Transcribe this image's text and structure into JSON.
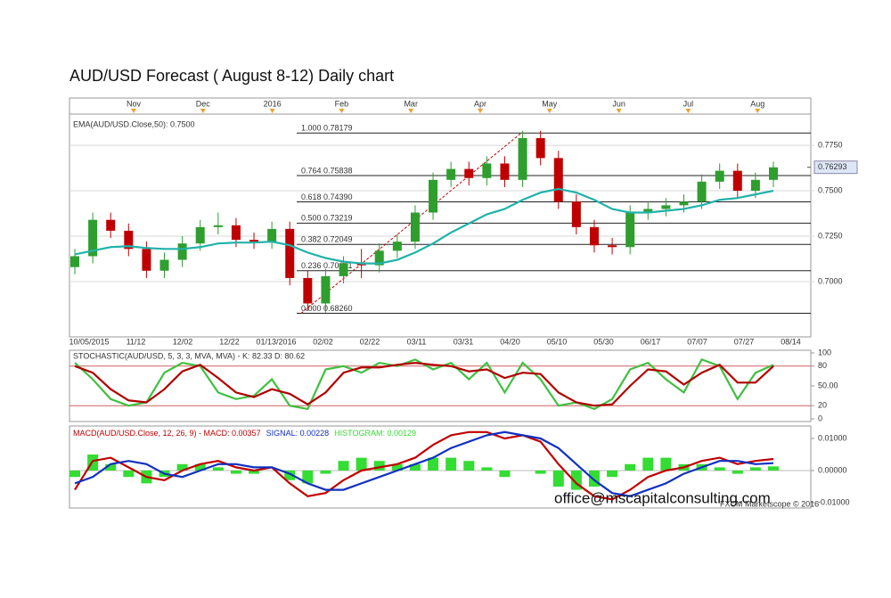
{
  "chart_data": [
    {
      "type": "candlestick",
      "title": "AUD/USD Forecast ( August 8-12) Daily chart",
      "open": [
        0.708,
        0.714,
        0.734,
        0.728,
        0.718,
        0.706,
        0.712,
        0.721,
        0.73,
        0.731,
        0.723,
        0.722,
        0.729,
        0.702,
        0.688,
        0.703,
        0.71,
        0.709,
        0.717,
        0.722,
        0.738,
        0.756,
        0.762,
        0.757,
        0.765,
        0.756,
        0.779,
        0.768,
        0.744,
        0.73,
        0.72,
        0.719,
        0.738,
        0.74,
        0.742,
        0.744,
        0.755,
        0.761,
        0.75,
        0.756
      ],
      "high": [
        0.718,
        0.738,
        0.738,
        0.732,
        0.722,
        0.716,
        0.725,
        0.734,
        0.738,
        0.735,
        0.727,
        0.733,
        0.733,
        0.706,
        0.707,
        0.714,
        0.718,
        0.721,
        0.726,
        0.742,
        0.76,
        0.766,
        0.766,
        0.769,
        0.769,
        0.783,
        0.783,
        0.772,
        0.748,
        0.734,
        0.724,
        0.742,
        0.744,
        0.746,
        0.748,
        0.759,
        0.765,
        0.765,
        0.76,
        0.766
      ],
      "low": [
        0.704,
        0.71,
        0.724,
        0.714,
        0.702,
        0.702,
        0.708,
        0.717,
        0.726,
        0.719,
        0.718,
        0.718,
        0.698,
        0.684,
        0.683,
        0.699,
        0.702,
        0.705,
        0.713,
        0.718,
        0.734,
        0.752,
        0.753,
        0.753,
        0.752,
        0.752,
        0.764,
        0.74,
        0.726,
        0.716,
        0.715,
        0.715,
        0.734,
        0.736,
        0.738,
        0.74,
        0.751,
        0.746,
        0.746,
        0.752
      ],
      "close": [
        0.714,
        0.734,
        0.728,
        0.718,
        0.706,
        0.712,
        0.721,
        0.73,
        0.731,
        0.723,
        0.722,
        0.729,
        0.702,
        0.688,
        0.703,
        0.71,
        0.709,
        0.717,
        0.722,
        0.738,
        0.756,
        0.762,
        0.757,
        0.765,
        0.756,
        0.779,
        0.768,
        0.744,
        0.73,
        0.72,
        0.719,
        0.738,
        0.74,
        0.742,
        0.744,
        0.755,
        0.761,
        0.75,
        0.756,
        0.7629
      ],
      "up_color": "#2e9e2e",
      "down_color": "#c00000",
      "ema": {
        "name": "EMA(AUD/USD.Close,50): 0.7500",
        "color": "#20b2aa",
        "values": [
          0.715,
          0.717,
          0.719,
          0.7195,
          0.7185,
          0.718,
          0.718,
          0.719,
          0.721,
          0.7215,
          0.7215,
          0.722,
          0.72,
          0.716,
          0.713,
          0.711,
          0.71,
          0.71,
          0.712,
          0.716,
          0.721,
          0.727,
          0.732,
          0.737,
          0.74,
          0.745,
          0.749,
          0.751,
          0.749,
          0.745,
          0.74,
          0.738,
          0.738,
          0.739,
          0.74,
          0.742,
          0.745,
          0.746,
          0.748,
          0.75
        ]
      },
      "fibonacci": [
        {
          "value": 0.78179,
          "label": "1.000 0.78179"
        },
        {
          "value": 0.75838,
          "label": "0.764 0.75838"
        },
        {
          "value": 0.7439,
          "label": "0.618 0.74390"
        },
        {
          "value": 0.73219,
          "label": "0.500 0.73219"
        },
        {
          "value": 0.72049,
          "label": "0.382 0.72049"
        },
        {
          "value": 0.70601,
          "label": "0.236 0.70601"
        },
        {
          "value": 0.6826,
          "label": "0.000 0.68260"
        }
      ],
      "last_price": {
        "value": 0.76293,
        "label": "0.76293"
      },
      "ylim": [
        0.6696,
        0.7922
      ],
      "yticks": [
        {
          "value": 0.775,
          "label": "0.7750"
        },
        {
          "value": 0.75,
          "label": "0.7500"
        },
        {
          "value": 0.725,
          "label": "0.7250"
        },
        {
          "value": 0.7,
          "label": "0.7000"
        }
      ],
      "grid": true,
      "top_labels": [
        "Nov",
        "Dec",
        "2016",
        "Feb",
        "Mar",
        "Apr",
        "May",
        "Jun",
        "Jul",
        "Aug"
      ],
      "x_labels": [
        "10/05/2015",
        "11/12",
        "12/02",
        "12/22",
        "01/13/2016",
        "02/02",
        "02/22",
        "03/11",
        "03/31",
        "04/20",
        "05/10",
        "05/30",
        "06/17",
        "07/07",
        "07/27",
        "08/14"
      ]
    },
    {
      "type": "line",
      "title": "STOCHASTIC(AUD/USD, 5, 3, 3, MVA, MVA) - K: 82.33  D: 80.62",
      "series": [
        {
          "name": "K",
          "color": "#40c040",
          "values": [
            85,
            60,
            30,
            20,
            25,
            70,
            85,
            80,
            40,
            30,
            35,
            60,
            20,
            15,
            75,
            80,
            70,
            85,
            80,
            90,
            75,
            85,
            60,
            85,
            40,
            85,
            60,
            20,
            25,
            15,
            30,
            75,
            85,
            60,
            40,
            90,
            80,
            30,
            70,
            82
          ]
        },
        {
          "name": "D",
          "color": "#b00000",
          "values": [
            80,
            70,
            45,
            28,
            25,
            45,
            72,
            82,
            62,
            40,
            33,
            45,
            38,
            22,
            40,
            70,
            78,
            78,
            82,
            85,
            82,
            80,
            72,
            75,
            62,
            70,
            68,
            40,
            25,
            20,
            22,
            50,
            75,
            72,
            52,
            70,
            82,
            55,
            55,
            80
          ]
        }
      ],
      "levels": [
        80,
        20
      ],
      "level_color": "#d06060",
      "ylim": [
        0,
        100
      ],
      "yticks": [
        100,
        80,
        {
          "value": 50,
          "label": "50.00"
        },
        20,
        0
      ]
    },
    {
      "type": "macd",
      "legend": [
        "MACD(AUD/USD.Close, 12, 26, 9) -  MACD: 0.00357",
        "SIGNAL: 0.00228",
        "HISTOGRAM: 0.00129"
      ],
      "series": [
        {
          "name": "MACD",
          "color": "#c00000",
          "values": [
            -0.006,
            0.003,
            0.004,
            0.001,
            -0.002,
            -0.003,
            0.0,
            0.002,
            0.003,
            0.001,
            0.0,
            0.001,
            -0.004,
            -0.008,
            -0.007,
            -0.003,
            0.0,
            0.001,
            0.002,
            0.004,
            0.008,
            0.011,
            0.012,
            0.012,
            0.01,
            0.011,
            0.009,
            0.002,
            -0.004,
            -0.008,
            -0.009,
            -0.006,
            -0.002,
            0.0,
            0.001,
            0.003,
            0.004,
            0.002,
            0.003,
            0.0036
          ]
        },
        {
          "name": "SIGNAL",
          "color": "#1030c0",
          "values": [
            -0.004,
            -0.002,
            0.002,
            0.003,
            0.002,
            -0.001,
            -0.002,
            0.0,
            0.002,
            0.002,
            0.001,
            0.001,
            -0.001,
            -0.004,
            -0.006,
            -0.006,
            -0.004,
            -0.002,
            0.0,
            0.002,
            0.004,
            0.007,
            0.009,
            0.011,
            0.012,
            0.011,
            0.01,
            0.007,
            0.002,
            -0.003,
            -0.007,
            -0.008,
            -0.006,
            -0.004,
            -0.001,
            0.001,
            0.003,
            0.003,
            0.002,
            0.0023
          ]
        },
        {
          "name": "HISTOGRAM",
          "color": "#33dd33",
          "values": [
            -0.002,
            0.005,
            0.002,
            -0.002,
            -0.004,
            -0.002,
            0.002,
            0.002,
            0.001,
            -0.001,
            -0.001,
            0.0,
            -0.003,
            -0.004,
            -0.001,
            0.003,
            0.004,
            0.003,
            0.002,
            0.002,
            0.004,
            0.004,
            0.003,
            0.001,
            -0.002,
            0.0,
            -0.001,
            -0.005,
            -0.006,
            -0.005,
            -0.002,
            0.002,
            0.004,
            0.004,
            0.002,
            0.002,
            0.001,
            -0.001,
            0.001,
            0.0013
          ]
        }
      ],
      "ylim": [
        -0.01167,
        0.01333
      ],
      "yticks": [
        {
          "value": 0.01,
          "label": "0.01000"
        },
        {
          "value": 0,
          "label": "0.00000"
        },
        {
          "value": -0.01,
          "label": "-0.01000"
        }
      ],
      "watermark": "office@mscapitalconsulting.com",
      "credit": "FXCM Marketscope © 2016"
    }
  ]
}
